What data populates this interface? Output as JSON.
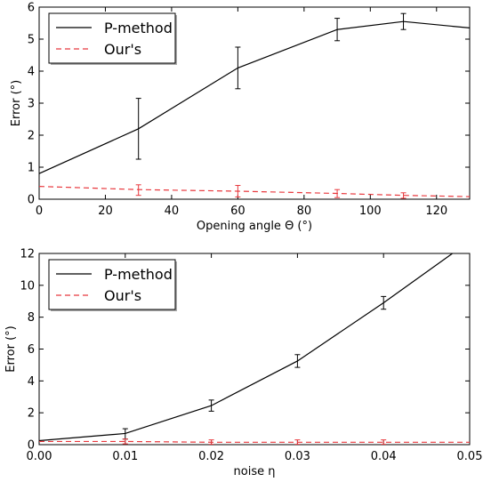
{
  "chart_data": [
    {
      "type": "line",
      "xlabel": "Opening angle Θ (°)",
      "ylabel": "Error (°)",
      "xlim": [
        0,
        130
      ],
      "ylim": [
        0,
        6
      ],
      "xticks": [
        "0",
        "20",
        "40",
        "60",
        "80",
        "100",
        "120"
      ],
      "yticks": [
        "0",
        "1",
        "2",
        "3",
        "4",
        "5",
        "6"
      ],
      "grid": false,
      "legend": "top-left",
      "series": [
        {
          "name": "P-method",
          "color": "#000000",
          "dash": "solid",
          "x": [
            0,
            30,
            60,
            90,
            110,
            130
          ],
          "y": [
            0.8,
            2.2,
            4.1,
            5.3,
            5.55,
            5.35
          ],
          "err_x": [
            30,
            60,
            90,
            110
          ],
          "err_low": [
            1.25,
            3.45,
            4.95,
            5.3
          ],
          "err_high": [
            3.15,
            4.75,
            5.65,
            5.8
          ]
        },
        {
          "name": "Our's",
          "color": "#e8383d",
          "dash": "dashed",
          "x": [
            0,
            30,
            60,
            90,
            110,
            130
          ],
          "y": [
            0.4,
            0.3,
            0.25,
            0.18,
            0.12,
            0.08
          ],
          "err_x": [
            30,
            60,
            90,
            110
          ],
          "err_low": [
            0.12,
            0.07,
            0.05,
            0.03
          ],
          "err_high": [
            0.45,
            0.43,
            0.3,
            0.2
          ]
        }
      ]
    },
    {
      "type": "line",
      "xlabel": "noise η",
      "ylabel": "Error (°)",
      "xlim": [
        0,
        0.05
      ],
      "ylim": [
        0,
        12
      ],
      "xticks": [
        "0.00",
        "0.01",
        "0.02",
        "0.03",
        "0.04",
        "0.05"
      ],
      "yticks": [
        "0",
        "2",
        "4",
        "6",
        "8",
        "10",
        "12"
      ],
      "grid": false,
      "legend": "top-left",
      "series": [
        {
          "name": "P-method",
          "color": "#000000",
          "dash": "solid",
          "x": [
            0,
            0.01,
            0.02,
            0.03,
            0.04,
            0.048
          ],
          "y": [
            0.25,
            0.7,
            2.45,
            5.25,
            8.9,
            12
          ],
          "err_x": [
            0.01,
            0.02,
            0.03,
            0.04
          ],
          "err_low": [
            0.35,
            2.1,
            4.85,
            8.5
          ],
          "err_high": [
            1.0,
            2.8,
            5.65,
            9.3
          ]
        },
        {
          "name": "Our's",
          "color": "#e8383d",
          "dash": "dashed",
          "x": [
            0,
            0.01,
            0.02,
            0.03,
            0.04,
            0.05
          ],
          "y": [
            0.2,
            0.2,
            0.15,
            0.15,
            0.15,
            0.15
          ],
          "err_x": [
            0.01,
            0.02,
            0.03,
            0.04
          ],
          "err_low": [
            0.05,
            0.02,
            0.02,
            0.02
          ],
          "err_high": [
            0.35,
            0.3,
            0.3,
            0.3
          ]
        }
      ]
    }
  ]
}
